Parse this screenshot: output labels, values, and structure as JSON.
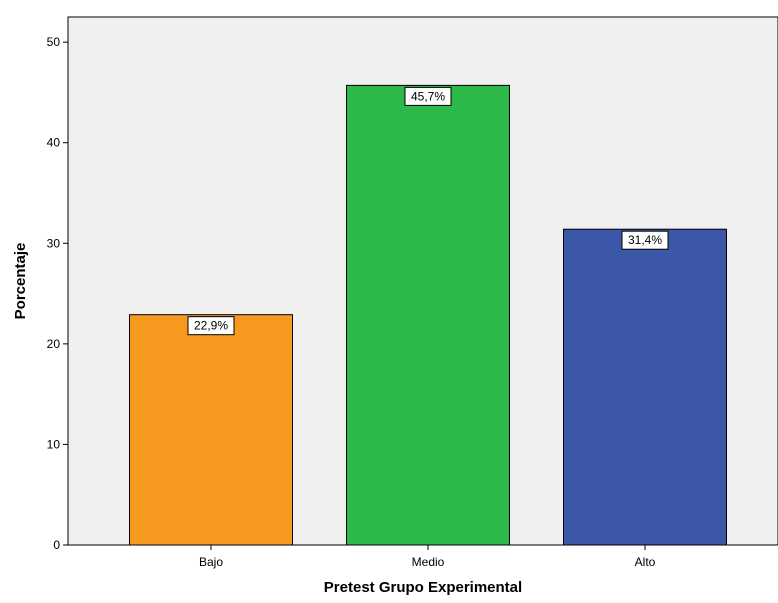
{
  "chart_data": {
    "type": "bar",
    "categories": [
      "Bajo",
      "Medio",
      "Alto"
    ],
    "values": [
      22.9,
      45.7,
      31.4
    ],
    "data_labels": [
      "22,9%",
      "45,7%",
      "31,4%"
    ],
    "colors": [
      "#f7981f",
      "#2db84a",
      "#3d57a8"
    ],
    "title": "",
    "xlabel": "Pretest Grupo Experimental",
    "ylabel": "Porcentaje",
    "ylim": [
      0,
      52.5
    ],
    "yticks": [
      0,
      10,
      20,
      30,
      40,
      50
    ],
    "ytick_labels": [
      "0",
      "10",
      "20",
      "30",
      "40",
      "50"
    ],
    "grid": false,
    "legend": "none",
    "plot_background": "#f0f0f0"
  }
}
